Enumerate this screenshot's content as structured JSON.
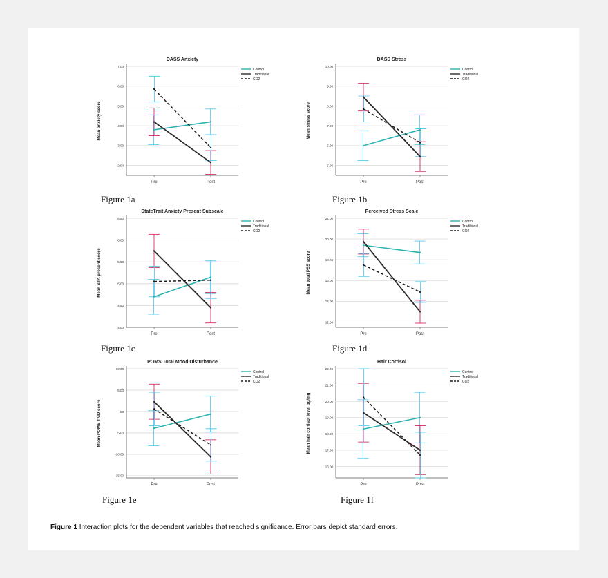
{
  "colors": {
    "control": "#2bb3b0",
    "traditional": "#2b2b2b",
    "co2": "#1a1a1a",
    "err_control": "#5ac8f0",
    "err_traditional": "#d0306a",
    "grid": "#d8d8d8"
  },
  "legend": [
    "Control",
    "Traditional",
    "CO2"
  ],
  "caption": {
    "label": "Figure 1",
    "text": "Interaction plots for the dependent variables that reached significance.  Error bars depict standard errors."
  },
  "figure_labels": [
    "Figure 1a",
    "Figure 1b",
    "Figure 1c",
    "Figure 1d",
    "Figure 1e",
    "Figure 1f"
  ],
  "chart_data": [
    {
      "type": "line",
      "title": "DASS Anxiety",
      "ylabel": "Mean anxiety score",
      "categories": [
        "Pre",
        "Post"
      ],
      "ylim": [
        1.5,
        7.0
      ],
      "ticks": [
        "7.00",
        "6.00",
        "5.00",
        "4.00",
        "3.00",
        "2.00"
      ],
      "tick_values": [
        7,
        6,
        5,
        4,
        3,
        2
      ],
      "series": [
        {
          "name": "Control",
          "values": [
            3.8,
            4.2
          ],
          "err": [
            0.75,
            0.65
          ]
        },
        {
          "name": "Traditional",
          "values": [
            4.2,
            2.15
          ],
          "err": [
            0.7,
            0.6
          ]
        },
        {
          "name": "CO2",
          "values": [
            5.85,
            2.9
          ],
          "err": [
            0.65,
            0.65
          ]
        }
      ]
    },
    {
      "type": "line",
      "title": "DASS Stress",
      "ylabel": "Mean stress score",
      "categories": [
        "Pre",
        "Post"
      ],
      "ylim": [
        4.5,
        10.0
      ],
      "ticks": [
        "10.00",
        "9.00",
        "8.00",
        "7.00",
        "6.00",
        "5.00"
      ],
      "tick_values": [
        10,
        9,
        8,
        7,
        6,
        5
      ],
      "series": [
        {
          "name": "Control",
          "values": [
            6.0,
            6.8
          ],
          "err": [
            0.75,
            0.75
          ]
        },
        {
          "name": "Traditional",
          "values": [
            8.45,
            5.45
          ],
          "err": [
            0.7,
            0.75
          ]
        },
        {
          "name": "CO2",
          "values": [
            7.85,
            6.15
          ],
          "err": [
            0.65,
            0.7
          ]
        }
      ]
    },
    {
      "type": "line",
      "title": "StateTrait Anxiety Present Subscale",
      "ylabel": "Mean STA present score",
      "categories": [
        "Pre",
        "Post"
      ],
      "ylim": [
        4.0,
        6.5
      ],
      "ticks": [
        "6.50",
        "6.00",
        "5.50",
        "5.00",
        "4.50",
        "4.00"
      ],
      "tick_values": [
        6.5,
        6,
        5.5,
        5,
        4.5,
        4
      ],
      "series": [
        {
          "name": "Control",
          "values": [
            4.7,
            5.15
          ],
          "err": [
            0.4,
            0.38
          ]
        },
        {
          "name": "Traditional",
          "values": [
            5.75,
            4.45
          ],
          "err": [
            0.38,
            0.35
          ]
        },
        {
          "name": "CO2",
          "values": [
            5.05,
            5.08
          ],
          "err": [
            0.35,
            0.42
          ]
        }
      ]
    },
    {
      "type": "line",
      "title": "Perceived Stress Scale",
      "ylabel": "Mean total PSS score",
      "categories": [
        "Pre",
        "Post"
      ],
      "ylim": [
        11.5,
        22.0
      ],
      "ticks": [
        "22.00",
        "20.00",
        "18.00",
        "16.00",
        "14.00",
        "12.00"
      ],
      "tick_values": [
        22,
        20,
        18,
        16,
        14,
        12
      ],
      "series": [
        {
          "name": "Control",
          "values": [
            19.4,
            18.7
          ],
          "err": [
            1.1,
            1.1
          ]
        },
        {
          "name": "Traditional",
          "values": [
            19.75,
            13.0
          ],
          "err": [
            1.2,
            1.1
          ]
        },
        {
          "name": "CO2",
          "values": [
            17.5,
            14.9
          ],
          "err": [
            1.1,
            1.0
          ]
        }
      ]
    },
    {
      "type": "line",
      "title": "POMS Total Mood Disturbance",
      "ylabel": "Mean POMS TMD score",
      "categories": [
        "Pre",
        "Post"
      ],
      "ylim": [
        -15.5,
        10.0
      ],
      "ticks": [
        "10.00",
        "5.00",
        ".00",
        "-5.00",
        "-10.00",
        "-15.00"
      ],
      "tick_values": [
        10,
        5,
        0,
        -5,
        -10,
        -15
      ],
      "series": [
        {
          "name": "Control",
          "values": [
            -3.9,
            -0.6
          ],
          "err": [
            4.1,
            4.2
          ]
        },
        {
          "name": "Traditional",
          "values": [
            2.3,
            -10.6
          ],
          "err": [
            4.1,
            4.0
          ]
        },
        {
          "name": "CO2",
          "values": [
            0.6,
            -7.8
          ],
          "err": [
            3.9,
            3.8
          ]
        }
      ]
    },
    {
      "type": "line",
      "title": "Hair Cortisol",
      "ylabel": "Mean hair cortisol level pg/mg",
      "categories": [
        "Pre",
        "Post"
      ],
      "ylim": [
        15.3,
        22.0
      ],
      "ticks": [
        "22.00",
        "21.00",
        "20.00",
        "19.00",
        "18.00",
        "17.00",
        "16.00"
      ],
      "tick_values": [
        22,
        21,
        20,
        19,
        18,
        17,
        16
      ],
      "series": [
        {
          "name": "Control",
          "values": [
            18.3,
            19.0
          ],
          "err": [
            1.8,
            1.55
          ]
        },
        {
          "name": "Traditional",
          "values": [
            19.3,
            17.0
          ],
          "err": [
            1.8,
            1.5
          ]
        },
        {
          "name": "CO2",
          "values": [
            20.25,
            16.7
          ],
          "err": [
            1.75,
            1.4
          ]
        }
      ]
    }
  ]
}
